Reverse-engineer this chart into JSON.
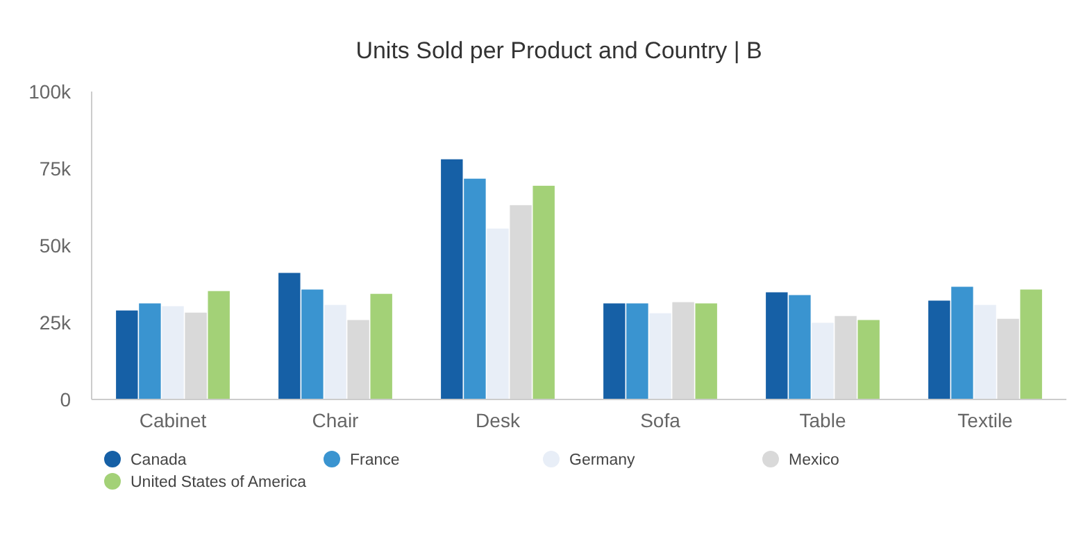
{
  "chart_data": {
    "type": "bar",
    "title": "Units Sold per Product and Country | B",
    "categories": [
      "Cabinet",
      "Chair",
      "Desk",
      "Sofa",
      "Table",
      "Textile"
    ],
    "series": [
      {
        "name": "Canada",
        "color": "#1660a6",
        "values": [
          28.9,
          41.1,
          78.0,
          31.2,
          34.8,
          32.1
        ]
      },
      {
        "name": "France",
        "color": "#3a94d0",
        "values": [
          31.2,
          35.7,
          71.7,
          31.2,
          33.9,
          36.6
        ]
      },
      {
        "name": "Germany",
        "color": "#e8eef7",
        "values": [
          30.3,
          30.7,
          55.5,
          28.0,
          24.9,
          30.7
        ]
      },
      {
        "name": "Mexico",
        "color": "#d9d9d9",
        "values": [
          28.2,
          25.8,
          63.1,
          31.6,
          27.1,
          26.2
        ]
      },
      {
        "name": "United States of America",
        "color": "#a3d177",
        "values": [
          35.2,
          34.3,
          69.4,
          31.2,
          25.8,
          35.7
        ]
      }
    ],
    "ylim": [
      0,
      100
    ],
    "yticks": [
      0,
      {
        "value": 25,
        "label": "25k"
      },
      {
        "value": 50,
        "label": "50k"
      },
      {
        "value": 75,
        "label": "75k"
      },
      {
        "value": 100,
        "label": "100k"
      }
    ],
    "grid": false,
    "legend": "bottom left"
  }
}
